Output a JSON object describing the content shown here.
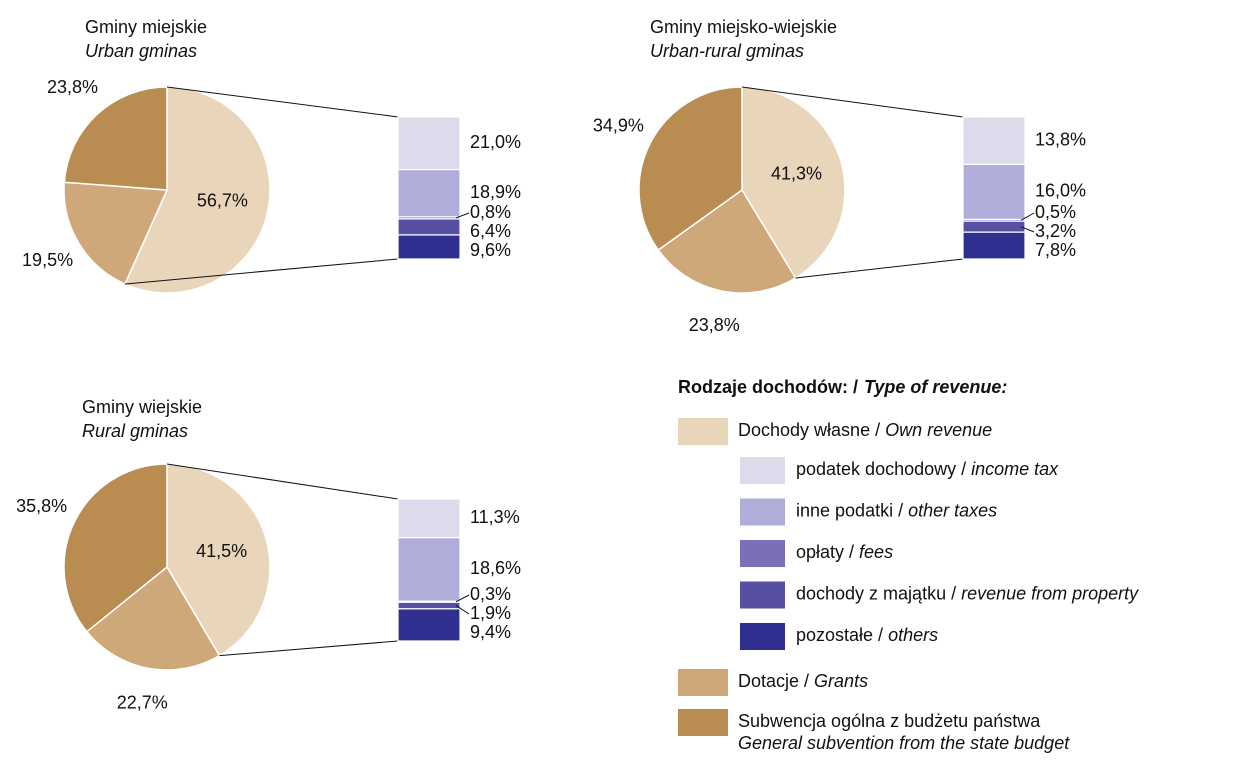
{
  "chart_data": [
    {
      "type": "pie_of_bar",
      "title": "Gminy miejskie",
      "subtitle": "Urban gminas",
      "values": [
        56.7,
        19.5,
        23.8
      ],
      "value_labels": [
        "56,7%",
        "19,5%",
        "23,8%"
      ],
      "bar_values": [
        21.0,
        18.9,
        0.8,
        6.4,
        9.6
      ],
      "bar_value_labels": [
        "21,0%",
        "18,9%",
        "0,8%",
        "6,4%",
        "9,6%"
      ]
    },
    {
      "type": "pie_of_bar",
      "title": "Gminy miejsko-wiejskie",
      "subtitle": "Urban-rural gminas",
      "values": [
        41.3,
        23.8,
        34.9
      ],
      "value_labels": [
        "41,3%",
        "23,8%",
        "34,9%"
      ],
      "bar_values": [
        13.8,
        16.0,
        0.5,
        3.2,
        7.8
      ],
      "bar_value_labels": [
        "13,8%",
        "16,0%",
        "0,5%",
        "3,2%",
        "7,8%"
      ]
    },
    {
      "type": "pie_of_bar",
      "title": "Gminy wiejskie",
      "subtitle": "Rural gminas",
      "values": [
        41.5,
        22.7,
        35.8
      ],
      "value_labels": [
        "41,5%",
        "22,7%",
        "35,8%"
      ],
      "bar_values": [
        11.3,
        18.6,
        0.3,
        1.9,
        9.4
      ],
      "bar_value_labels": [
        "11,3%",
        "18,6%",
        "0,3%",
        "1,9%",
        "9,4%"
      ]
    }
  ],
  "legend": {
    "title": "Rodzaje dochodów: /",
    "title_en": "Type of revenue:",
    "pie_items": [
      {
        "name": "Dochody własne /",
        "name_en": "Own revenue",
        "color": "#e9d5b9"
      },
      {
        "name": "Dotacje /",
        "name_en": "Grants",
        "color": "#cfa87a"
      },
      {
        "name": "Subwencja ogólna z budżetu państwa",
        "name_en": "General subvention from the state budget",
        "color": "#b98c51"
      }
    ],
    "bar_items": [
      {
        "name": "podatek dochodowy /",
        "name_en": "income tax",
        "color": "#dddaec"
      },
      {
        "name": "inne podatki /",
        "name_en": "other taxes",
        "color": "#b1addb"
      },
      {
        "name": "opłaty /",
        "name_en": "fees",
        "color": "#7a70b5"
      },
      {
        "name": "dochody z majątku /",
        "name_en": "revenue from property",
        "color": "#5750a2"
      },
      {
        "name": "pozostałe /",
        "name_en": "others",
        "color": "#2e2f8f"
      }
    ]
  }
}
